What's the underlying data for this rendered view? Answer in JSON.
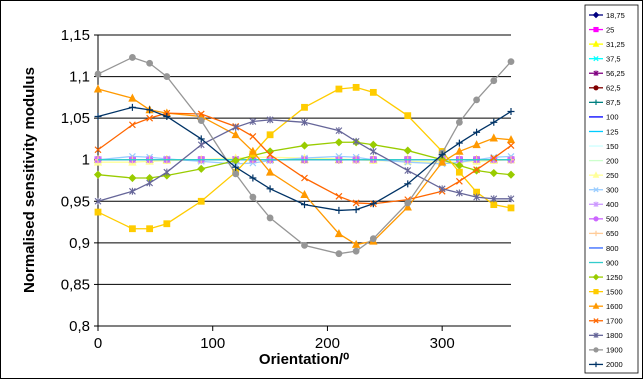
{
  "chart_data": {
    "type": "line",
    "title": "",
    "xlabel": "Orientation/⁰",
    "ylabel": "Normalised sensitivity modulus",
    "xlim": [
      0,
      360
    ],
    "ylim": [
      0.8,
      1.15
    ],
    "xticks": [
      0,
      100,
      200,
      300
    ],
    "yticks": [
      0.8,
      0.85,
      0.9,
      0.95,
      1.0,
      1.05,
      1.1,
      1.15
    ],
    "xtick_labels": [
      "0",
      "100",
      "200",
      "300"
    ],
    "ytick_labels": [
      "0,8",
      "0,85",
      "0,9",
      "0,95",
      "1",
      "1,05",
      "1,1",
      "1,15"
    ],
    "grid": "horizontal",
    "legend_position": "right",
    "x": [
      0,
      30,
      45,
      60,
      90,
      120,
      135,
      150,
      180,
      210,
      225,
      240,
      270,
      300,
      315,
      330,
      345,
      360
    ],
    "series": [
      {
        "name": "18,75",
        "color": "#000080",
        "marker": "diamond",
        "values": [
          1.0,
          1.0,
          1.0,
          1.0,
          1.0,
          1.0,
          1.0,
          1.0,
          1.0,
          1.0,
          1.0,
          1.0,
          1.0,
          1.0,
          1.0,
          1.0,
          1.0,
          1.0
        ]
      },
      {
        "name": "25",
        "color": "#ff00ff",
        "marker": "square",
        "values": [
          1.0,
          1.0,
          1.0,
          1.0,
          1.0,
          1.0,
          1.0,
          1.0,
          1.0,
          1.0,
          1.0,
          1.0,
          1.0,
          1.0,
          1.0,
          1.0,
          1.0,
          1.0
        ]
      },
      {
        "name": "31,25",
        "color": "#ffff00",
        "marker": "triangle",
        "values": [
          1.0,
          1.0,
          1.0,
          1.0,
          1.0,
          1.0,
          1.0,
          1.0,
          1.0,
          1.0,
          1.0,
          1.0,
          1.0,
          1.0,
          1.0,
          1.0,
          1.0,
          1.0
        ]
      },
      {
        "name": "37,5",
        "color": "#00ffff",
        "marker": "x",
        "values": [
          1.0,
          1.0,
          1.0,
          1.0,
          1.0,
          1.0,
          1.0,
          1.0,
          1.0,
          1.0,
          1.0,
          1.0,
          1.0,
          1.0,
          1.0,
          1.0,
          1.0,
          1.0
        ]
      },
      {
        "name": "56,25",
        "color": "#800080",
        "marker": "star",
        "values": [
          1.0,
          1.0,
          1.0,
          1.0,
          1.0,
          1.0,
          1.0,
          1.0,
          1.0,
          1.0,
          1.0,
          1.0,
          1.0,
          1.0,
          1.0,
          1.0,
          1.0,
          1.0
        ]
      },
      {
        "name": "62,5",
        "color": "#800000",
        "marker": "circle",
        "values": [
          1.0,
          1.0,
          1.0,
          1.0,
          1.0,
          1.0,
          1.0,
          1.0,
          1.0,
          1.0,
          1.0,
          1.0,
          1.0,
          1.0,
          1.0,
          1.0,
          1.0,
          1.0
        ]
      },
      {
        "name": "87,5",
        "color": "#008080",
        "marker": "plus",
        "values": [
          1.0,
          1.0,
          1.0,
          1.0,
          1.0,
          1.0,
          1.0,
          1.0,
          1.0,
          1.0,
          1.0,
          1.0,
          1.0,
          1.0,
          1.0,
          1.0,
          1.0,
          1.0
        ]
      },
      {
        "name": "100",
        "color": "#0000ff",
        "marker": "none",
        "values": [
          1.0,
          1.0,
          1.0,
          1.0,
          1.0,
          1.0,
          1.0,
          1.0,
          1.0,
          1.0,
          1.0,
          1.0,
          1.0,
          1.0,
          1.0,
          1.0,
          1.0,
          1.0
        ]
      },
      {
        "name": "125",
        "color": "#00ccff",
        "marker": "none",
        "values": [
          1.0,
          1.0,
          1.0,
          1.0,
          1.0,
          1.0,
          1.0,
          1.0,
          1.0,
          1.0,
          1.0,
          1.0,
          1.0,
          1.0,
          1.0,
          1.0,
          1.0,
          1.0
        ]
      },
      {
        "name": "150",
        "color": "#ccffff",
        "marker": "none",
        "values": [
          1.0,
          1.0,
          1.0,
          1.0,
          1.0,
          1.0,
          1.0,
          1.0,
          1.0,
          1.0,
          1.0,
          1.0,
          1.0,
          1.0,
          1.0,
          1.0,
          1.0,
          1.0
        ]
      },
      {
        "name": "200",
        "color": "#ccffcc",
        "marker": "none",
        "values": [
          1.0,
          1.0,
          1.0,
          1.0,
          1.0,
          1.0,
          1.0,
          1.0,
          1.0,
          1.0,
          1.0,
          1.0,
          1.0,
          1.0,
          1.0,
          1.0,
          1.0,
          1.0
        ]
      },
      {
        "name": "250",
        "color": "#ffff99",
        "marker": "triangle",
        "values": [
          0.997,
          0.997,
          0.998,
          0.999,
          1.0,
          1.002,
          1.003,
          1.003,
          1.002,
          1.001,
          1.0,
          0.999,
          0.998,
          0.997,
          0.997,
          0.998,
          0.999,
          1.0
        ]
      },
      {
        "name": "300",
        "color": "#99ccff",
        "marker": "x",
        "values": [
          1.0,
          1.004,
          1.003,
          1.001,
          0.998,
          0.995,
          0.996,
          0.999,
          1.002,
          1.004,
          1.003,
          1.0,
          0.997,
          0.995,
          0.997,
          1.0,
          1.003,
          1.004
        ]
      },
      {
        "name": "400",
        "color": "#cc99ff",
        "marker": "star",
        "values": [
          1.0,
          1.0,
          1.0,
          1.0,
          1.0,
          1.0,
          1.0,
          1.0,
          1.0,
          1.0,
          1.0,
          1.0,
          1.0,
          1.0,
          1.0,
          1.0,
          1.0,
          1.0
        ]
      },
      {
        "name": "500",
        "color": "#cc66ff",
        "marker": "circle",
        "values": [
          1.0,
          1.0,
          1.0,
          1.0,
          1.0,
          1.0,
          1.0,
          1.0,
          1.0,
          1.0,
          1.0,
          1.0,
          1.0,
          1.0,
          1.0,
          1.0,
          1.0,
          1.0
        ]
      },
      {
        "name": "650",
        "color": "#ffcc99",
        "marker": "plus",
        "values": [
          1.0,
          1.0,
          1.0,
          1.0,
          1.0,
          1.0,
          1.0,
          1.0,
          1.0,
          1.0,
          1.0,
          1.0,
          1.0,
          1.0,
          1.0,
          1.0,
          1.0,
          1.0
        ]
      },
      {
        "name": "800",
        "color": "#3366ff",
        "marker": "none",
        "values": [
          1.0,
          1.0,
          1.0,
          1.0,
          1.0,
          1.0,
          1.0,
          1.0,
          1.0,
          1.0,
          1.0,
          1.0,
          1.0,
          1.0,
          1.0,
          1.0,
          1.0,
          1.0
        ]
      },
      {
        "name": "900",
        "color": "#33cccc",
        "marker": "none",
        "values": [
          1.0,
          1.0,
          1.0,
          1.0,
          1.0,
          1.0,
          1.0,
          1.0,
          1.0,
          1.0,
          1.0,
          1.0,
          1.0,
          1.0,
          1.0,
          1.0,
          1.0,
          1.0
        ]
      },
      {
        "name": "1250",
        "color": "#99cc00",
        "marker": "diamond",
        "values": [
          0.982,
          0.978,
          0.978,
          0.981,
          0.989,
          0.999,
          1.005,
          1.01,
          1.017,
          1.021,
          1.021,
          1.018,
          1.011,
          1.0,
          0.993,
          0.987,
          0.984,
          0.982
        ]
      },
      {
        "name": "1500",
        "color": "#ffcc00",
        "marker": "square",
        "values": [
          0.937,
          0.917,
          0.917,
          0.923,
          0.95,
          0.985,
          1.007,
          1.03,
          1.063,
          1.085,
          1.087,
          1.081,
          1.053,
          1.01,
          0.985,
          0.961,
          0.946,
          0.942
        ]
      },
      {
        "name": "1600",
        "color": "#ff9900",
        "marker": "triangle",
        "values": [
          1.085,
          1.074,
          1.06,
          1.056,
          1.052,
          1.03,
          1.01,
          0.985,
          0.958,
          0.911,
          0.898,
          0.902,
          0.943,
          0.997,
          1.01,
          1.018,
          1.026,
          1.024
        ]
      },
      {
        "name": "1700",
        "color": "#ff6600",
        "marker": "x",
        "values": [
          1.012,
          1.042,
          1.05,
          1.056,
          1.055,
          1.04,
          1.028,
          1.006,
          0.978,
          0.956,
          0.948,
          0.947,
          0.952,
          0.962,
          0.974,
          0.988,
          1.002,
          1.017
        ]
      },
      {
        "name": "1800",
        "color": "#666699",
        "marker": "star",
        "values": [
          0.95,
          0.962,
          0.972,
          0.985,
          1.018,
          1.039,
          1.046,
          1.048,
          1.045,
          1.035,
          1.022,
          1.01,
          0.987,
          0.965,
          0.96,
          0.955,
          0.953,
          0.953
        ]
      },
      {
        "name": "1900",
        "color": "#969696",
        "marker": "circle",
        "values": [
          1.103,
          1.123,
          1.116,
          1.1,
          1.047,
          0.983,
          0.955,
          0.93,
          0.897,
          0.887,
          0.89,
          0.905,
          0.948,
          1.008,
          1.045,
          1.072,
          1.095,
          1.118
        ]
      },
      {
        "name": "2000",
        "color": "#003366",
        "marker": "plus",
        "values": [
          1.052,
          1.063,
          1.06,
          1.052,
          1.025,
          0.991,
          0.978,
          0.965,
          0.946,
          0.939,
          0.94,
          0.947,
          0.971,
          1.006,
          1.02,
          1.033,
          1.045,
          1.058
        ]
      }
    ]
  }
}
